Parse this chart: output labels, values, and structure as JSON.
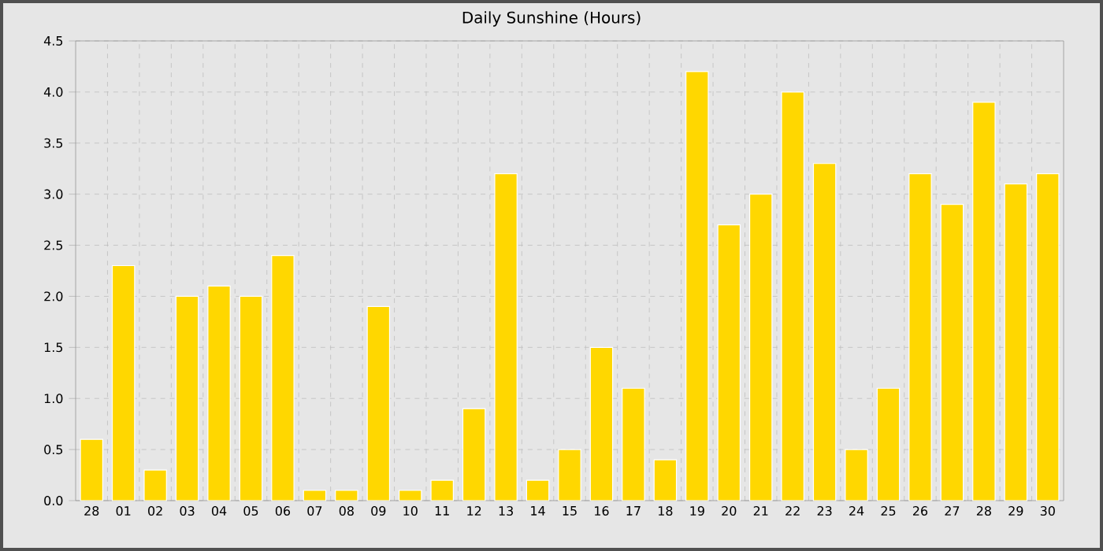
{
  "chart_data": {
    "type": "bar",
    "title": "Daily Sunshine (Hours)",
    "categories": [
      "28",
      "01",
      "02",
      "03",
      "04",
      "05",
      "06",
      "07",
      "08",
      "09",
      "10",
      "11",
      "12",
      "13",
      "14",
      "15",
      "16",
      "17",
      "18",
      "19",
      "20",
      "21",
      "22",
      "23",
      "24",
      "25",
      "26",
      "27",
      "28",
      "29",
      "30"
    ],
    "values": [
      0.6,
      2.3,
      0.3,
      2.0,
      2.1,
      2.0,
      2.4,
      0.1,
      0.1,
      1.9,
      0.1,
      0.2,
      0.9,
      3.2,
      0.2,
      0.5,
      1.5,
      1.1,
      0.4,
      4.2,
      2.7,
      3.0,
      4.0,
      3.3,
      0.5,
      1.1,
      3.2,
      2.9,
      3.9,
      3.1,
      3.2
    ],
    "color": "#ffd700",
    "ylim": [
      0,
      4.5
    ],
    "yticks": [
      {
        "value": 0,
        "label": "0.0"
      },
      {
        "value": 0.5,
        "label": "0.5"
      },
      {
        "value": 1,
        "label": "1.0"
      },
      {
        "value": 1.5,
        "label": "1.5"
      },
      {
        "value": 2,
        "label": "2.0"
      },
      {
        "value": 2.5,
        "label": "2.5"
      },
      {
        "value": 3,
        "label": "3.0"
      },
      {
        "value": 3.5,
        "label": "3.5"
      },
      {
        "value": 4,
        "label": "4.0"
      },
      {
        "value": 4.5,
        "label": "4.5"
      }
    ],
    "grid": true
  }
}
